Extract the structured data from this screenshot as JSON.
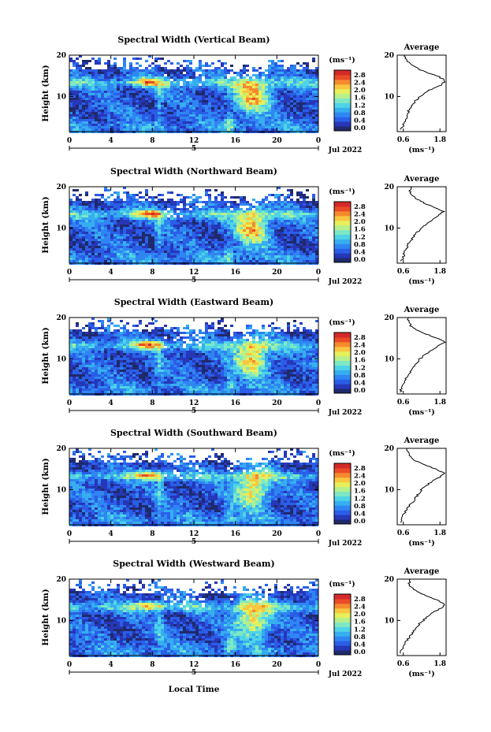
{
  "chart_data": {
    "type": "heatmap",
    "xlabel": "Local Time",
    "date_label": "Jul 2022",
    "day_label": "5",
    "x_ticks": [
      "0",
      "4",
      "8",
      "12",
      "16",
      "20",
      "0"
    ],
    "xlim": [
      0,
      24
    ],
    "y_ticks": [
      "20",
      "10"
    ],
    "ylabel": "Height (km)",
    "ylim": [
      1.5,
      20
    ],
    "colorbar": {
      "unit": "(ms⁻¹)",
      "tick_labels": [
        "2.8",
        "2.4",
        "2.0",
        "1.6",
        "1.2",
        "0.8",
        "0.4",
        "0.0"
      ],
      "range": [
        0,
        3.0
      ],
      "colors": [
        "#1f2a6b",
        "#2637b8",
        "#2a5ee8",
        "#2f86f2",
        "#36aef0",
        "#4fd3e6",
        "#7ee8c4",
        "#b6f08c",
        "#e7ef5a",
        "#f8c640",
        "#f68a2e",
        "#ea4a27",
        "#d42a2a"
      ]
    },
    "average_title": "Average",
    "average_unit": "(ms⁻¹)",
    "average_x_ticks": [
      "0.6",
      "1.8"
    ],
    "average_xlim": [
      0.4,
      2.0
    ],
    "average_y_ticks": [
      "20",
      "10"
    ],
    "panels": [
      {
        "title": "Spectral Width (Vertical Beam)",
        "average_profile": {
          "height": [
            2,
            3,
            4,
            5,
            6,
            7,
            8,
            9,
            10,
            11,
            12,
            13,
            14,
            15,
            16,
            17,
            18,
            19,
            20
          ],
          "width": [
            0.5,
            0.6,
            0.65,
            0.7,
            0.75,
            0.8,
            0.9,
            1.0,
            1.15,
            1.3,
            1.6,
            1.9,
            1.95,
            1.7,
            1.3,
            1.0,
            0.8,
            0.7,
            0.65
          ]
        }
      },
      {
        "title": "Spectral Width (Northward Beam)",
        "average_profile": {
          "height": [
            2,
            3,
            4,
            5,
            6,
            7,
            8,
            9,
            10,
            11,
            12,
            13,
            14,
            15,
            16,
            17,
            18,
            19,
            20
          ],
          "width": [
            0.55,
            0.6,
            0.62,
            0.7,
            0.75,
            0.85,
            0.95,
            1.05,
            1.2,
            1.35,
            1.55,
            1.75,
            1.9,
            1.6,
            1.3,
            1.05,
            0.85,
            0.8,
            0.9
          ]
        }
      },
      {
        "title": "Spectral Width (Eastward Beam)",
        "average_profile": {
          "height": [
            2,
            3,
            4,
            5,
            6,
            7,
            8,
            9,
            10,
            11,
            12,
            13,
            14,
            15,
            16,
            17,
            18,
            19,
            20
          ],
          "width": [
            0.5,
            0.55,
            0.6,
            0.68,
            0.75,
            0.85,
            0.95,
            1.05,
            1.15,
            1.3,
            1.5,
            1.7,
            1.95,
            1.7,
            1.35,
            1.05,
            0.85,
            0.78,
            0.75
          ]
        }
      },
      {
        "title": "Spectral Width (Southward Beam)",
        "average_profile": {
          "height": [
            2,
            3,
            4,
            5,
            6,
            7,
            8,
            9,
            10,
            11,
            12,
            13,
            14,
            15,
            16,
            17,
            18,
            19,
            20
          ],
          "width": [
            0.5,
            0.55,
            0.6,
            0.7,
            0.8,
            0.9,
            1.0,
            1.1,
            1.2,
            1.35,
            1.55,
            1.8,
            1.95,
            1.65,
            1.3,
            1.0,
            0.85,
            0.75,
            0.7
          ]
        }
      },
      {
        "title": "Spectral Width (Westward Beam)",
        "average_profile": {
          "height": [
            2,
            3,
            4,
            5,
            6,
            7,
            8,
            9,
            10,
            11,
            12,
            13,
            14,
            15,
            16,
            17,
            18,
            19,
            20
          ],
          "width": [
            0.5,
            0.55,
            0.62,
            0.7,
            0.8,
            0.9,
            1.0,
            1.1,
            1.25,
            1.4,
            1.6,
            1.85,
            1.95,
            1.7,
            1.35,
            1.05,
            0.85,
            0.8,
            0.85
          ]
        }
      }
    ]
  }
}
